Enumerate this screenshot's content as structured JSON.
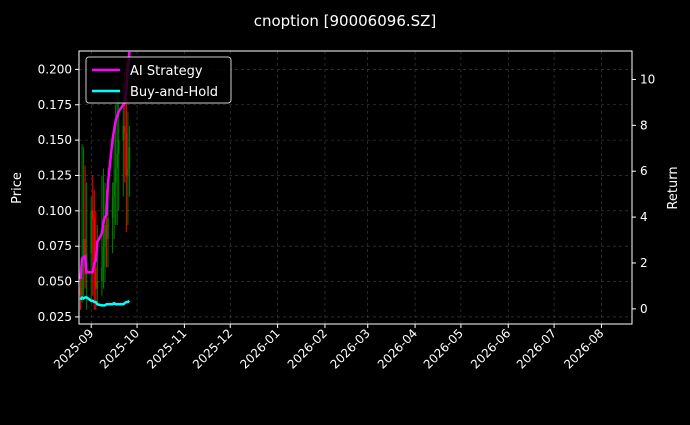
{
  "chart_data": {
    "type": "line",
    "title": "cnoption [90006096.SZ]",
    "ylabel": "Price",
    "y2label": "Return",
    "ylim": [
      0.02,
      0.213
    ],
    "y2lim": [
      -0.66,
      11.24
    ],
    "xlim": [
      "2025-08-24",
      "2026-08-21"
    ],
    "grid": true,
    "legend_position": "top-left",
    "yticks": [
      0.025,
      0.05,
      0.075,
      0.1,
      0.125,
      0.15,
      0.175,
      0.2
    ],
    "ytick_labels": [
      "0.025",
      "0.050",
      "0.075",
      "0.100",
      "0.125",
      "0.150",
      "0.175",
      "0.200"
    ],
    "y2ticks": [
      0,
      2,
      4,
      6,
      8,
      10
    ],
    "y2tick_labels": [
      "0",
      "2",
      "4",
      "6",
      "8",
      "10"
    ],
    "xticks": [
      "2025-09-01",
      "2025-10-01",
      "2025-11-01",
      "2025-12-01",
      "2026-01-01",
      "2026-02-01",
      "2026-03-01",
      "2026-04-01",
      "2026-05-01",
      "2026-06-01",
      "2026-07-01",
      "2026-08-01"
    ],
    "xtick_labels": [
      "2025-09",
      "2025-10",
      "2025-11",
      "2025-12",
      "2026-01",
      "2026-02",
      "2026-03",
      "2026-04",
      "2026-05",
      "2026-06",
      "2026-07",
      "2026-08"
    ],
    "candles": {
      "dates": [
        "2025-08-25",
        "2025-08-26",
        "2025-08-27",
        "2025-08-28",
        "2025-08-29",
        "2025-09-01",
        "2025-09-02",
        "2025-09-03",
        "2025-09-04",
        "2025-09-05",
        "2025-09-08",
        "2025-09-09",
        "2025-09-10",
        "2025-09-11",
        "2025-09-12",
        "2025-09-15",
        "2025-09-16",
        "2025-09-17",
        "2025-09-18",
        "2025-09-19",
        "2025-09-22",
        "2025-09-23",
        "2025-09-24",
        "2025-09-25",
        "2025-09-26"
      ],
      "open": [
        0.045,
        0.04,
        0.06,
        0.08,
        0.055,
        0.07,
        0.1,
        0.095,
        0.06,
        0.045,
        0.05,
        0.06,
        0.075,
        0.09,
        0.08,
        0.095,
        0.11,
        0.12,
        0.13,
        0.14,
        0.15,
        0.16,
        0.155,
        0.125,
        0.13
      ],
      "high": [
        0.06,
        0.147,
        0.145,
        0.132,
        0.12,
        0.11,
        0.125,
        0.115,
        0.1,
        0.09,
        0.125,
        0.13,
        0.12,
        0.115,
        0.13,
        0.12,
        0.16,
        0.175,
        0.185,
        0.18,
        0.19,
        0.2,
        0.205,
        0.17,
        0.16
      ],
      "low": [
        0.03,
        0.035,
        0.04,
        0.045,
        0.03,
        0.035,
        0.04,
        0.03,
        0.03,
        0.035,
        0.04,
        0.045,
        0.05,
        0.06,
        0.06,
        0.07,
        0.08,
        0.09,
        0.09,
        0.1,
        0.11,
        0.12,
        0.085,
        0.09,
        0.11
      ],
      "close": [
        0.04,
        0.06,
        0.08,
        0.055,
        0.07,
        0.1,
        0.095,
        0.06,
        0.045,
        0.05,
        0.06,
        0.075,
        0.09,
        0.08,
        0.095,
        0.11,
        0.12,
        0.13,
        0.14,
        0.15,
        0.16,
        0.155,
        0.125,
        0.13,
        0.145
      ]
    },
    "series": [
      {
        "name": "AI Strategy",
        "color": "#ff00ff",
        "x": [
          "2025-08-25",
          "2025-08-26",
          "2025-08-28",
          "2025-08-29",
          "2025-09-01",
          "2025-09-02",
          "2025-09-03",
          "2025-09-04",
          "2025-09-05",
          "2025-09-08",
          "2025-09-09",
          "2025-09-10",
          "2025-09-11",
          "2025-09-12",
          "2025-09-15",
          "2025-09-16",
          "2025-09-17",
          "2025-09-18",
          "2025-09-19",
          "2025-09-22",
          "2025-09-23",
          "2025-09-24",
          "2025-09-25",
          "2025-09-26"
        ],
        "values": [
          1.3,
          2.2,
          2.3,
          1.6,
          1.6,
          1.6,
          2.0,
          2.1,
          2.9,
          3.3,
          3.8,
          4.0,
          4.1,
          5.5,
          7.4,
          7.8,
          8.2,
          8.4,
          8.6,
          8.9,
          9.0,
          9.5,
          10.5,
          11.2
        ]
      },
      {
        "name": "Buy-and-Hold",
        "color": "#00ffff",
        "x": [
          "2025-08-25",
          "2025-08-26",
          "2025-08-27",
          "2025-08-28",
          "2025-08-29",
          "2025-09-01",
          "2025-09-02",
          "2025-09-03",
          "2025-09-04",
          "2025-09-05",
          "2025-09-08",
          "2025-09-09",
          "2025-09-10",
          "2025-09-11",
          "2025-09-12",
          "2025-09-15",
          "2025-09-16",
          "2025-09-17",
          "2025-09-18",
          "2025-09-19",
          "2025-09-22",
          "2025-09-23",
          "2025-09-24",
          "2025-09-25",
          "2025-09-26"
        ],
        "values": [
          0.4,
          0.5,
          0.45,
          0.5,
          0.5,
          0.35,
          0.35,
          0.3,
          0.3,
          0.2,
          0.15,
          0.15,
          0.15,
          0.2,
          0.2,
          0.2,
          0.25,
          0.2,
          0.2,
          0.2,
          0.2,
          0.25,
          0.3,
          0.3,
          0.35
        ]
      }
    ],
    "up_color": "#008000",
    "down_color": "#ff0000"
  }
}
